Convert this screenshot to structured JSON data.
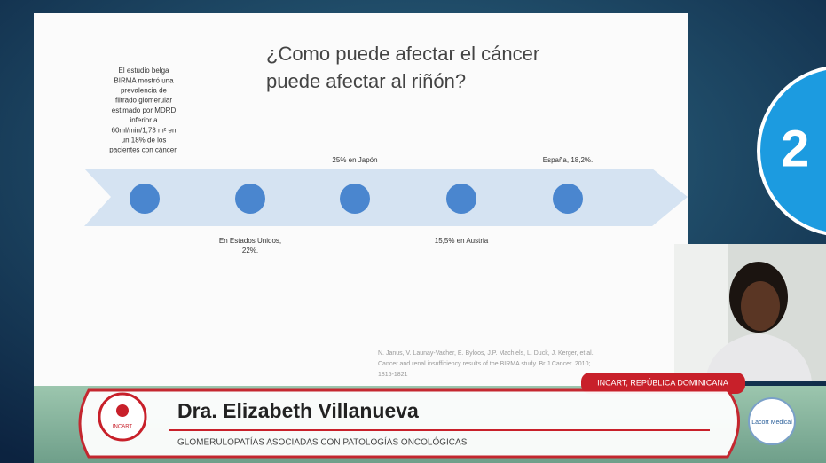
{
  "slide": {
    "title_lines": [
      "¿Como puede afectar el cáncer",
      "puede afectar al riñón?"
    ],
    "left_note_lines": [
      "El estudio belga",
      "BIRMA mostró una",
      "prevalencia de",
      "filtrado glomerular",
      "estimado  por MDRD",
      "inferior a",
      "60ml/min/1,73 m² en",
      "un 18% de los",
      "pacientes con cáncer."
    ],
    "timeline_above": [
      "25% en Japón",
      "España, 18,2%."
    ],
    "timeline_below": [
      [
        "En Estados Unidos,",
        "22%."
      ],
      [
        "15,5% en Austria"
      ]
    ],
    "citation_lines": [
      "N. Janus, V. Launay-Vacher, E. Byloos, J.P. Machiels, L. Duck, J. Kerger, et al.",
      "Cancer and renal insufficiency results of the BIRMA study. Br J Cancer. 2010;",
      "1815-1821"
    ]
  },
  "session_badge": "2",
  "lower_third": {
    "location": "INCART, REPÚBLICA DOMINICANA",
    "speaker": "Dra. Elizabeth Villanueva",
    "talk": "GLOMERULOPATÍAS ASOCIADAS CON PATOLOGÍAS ONCOLÓGICAS",
    "left_logo": "INCART",
    "right_logo": "Lacort Medical"
  }
}
